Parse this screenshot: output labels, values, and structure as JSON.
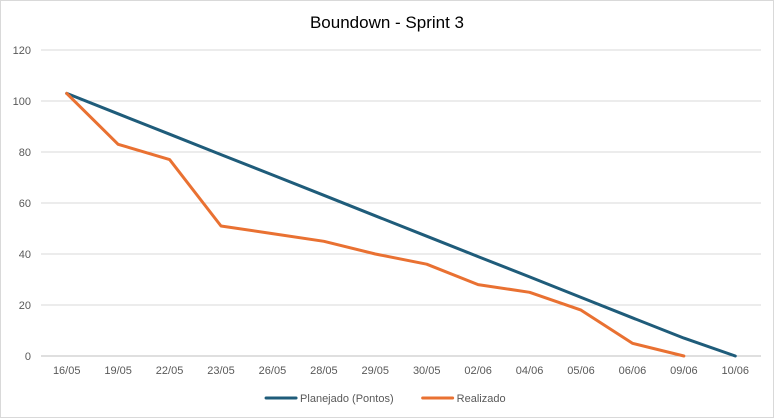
{
  "chart_data": {
    "type": "line",
    "title": "Boundown - Sprint 3",
    "categories": [
      "16/05",
      "19/05",
      "22/05",
      "23/05",
      "26/05",
      "28/05",
      "29/05",
      "30/05",
      "02/06",
      "04/06",
      "05/06",
      "06/06",
      "09/06",
      "10/06"
    ],
    "ylim": [
      0,
      120
    ],
    "yticks": [
      0,
      20,
      40,
      60,
      80,
      100,
      120
    ],
    "grid": true,
    "legend_position": "bottom",
    "series": [
      {
        "name": "Planejado (Pontos)",
        "color": "#1f5c7a",
        "values": [
          103,
          95,
          87,
          79,
          71,
          63,
          55,
          47,
          39,
          31,
          23,
          15,
          7,
          0
        ]
      },
      {
        "name": "Realizado",
        "color": "#e97132",
        "values": [
          103,
          83,
          77,
          51,
          48,
          45,
          40,
          36,
          28,
          25,
          18,
          5,
          0,
          null
        ]
      }
    ]
  }
}
